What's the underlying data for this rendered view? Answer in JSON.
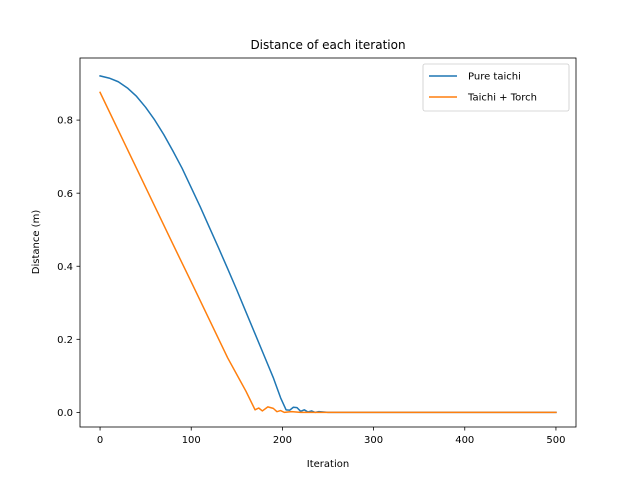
{
  "chart_data": {
    "type": "line",
    "title": "Distance of each iteration",
    "xlabel": "Iteration",
    "ylabel": "Distance (m)",
    "xlim": [
      -22,
      522
    ],
    "ylim": [
      -0.04,
      0.97
    ],
    "xticks": [
      0,
      100,
      200,
      300,
      400,
      500
    ],
    "yticks": [
      0.0,
      0.2,
      0.4,
      0.6,
      0.8
    ],
    "grid": false,
    "legend": "top-right",
    "series": [
      {
        "name": "Pure taichi",
        "color": "#1f77b4",
        "points": [
          [
            0,
            0.921
          ],
          [
            10,
            0.915
          ],
          [
            20,
            0.905
          ],
          [
            30,
            0.888
          ],
          [
            40,
            0.865
          ],
          [
            50,
            0.835
          ],
          [
            60,
            0.8
          ],
          [
            70,
            0.76
          ],
          [
            80,
            0.715
          ],
          [
            90,
            0.668
          ],
          [
            100,
            0.615
          ],
          [
            110,
            0.562
          ],
          [
            120,
            0.506
          ],
          [
            130,
            0.45
          ],
          [
            140,
            0.393
          ],
          [
            150,
            0.335
          ],
          [
            160,
            0.275
          ],
          [
            170,
            0.215
          ],
          [
            180,
            0.155
          ],
          [
            190,
            0.095
          ],
          [
            198,
            0.04
          ],
          [
            204,
            0.007
          ],
          [
            208,
            0.006
          ],
          [
            212,
            0.014
          ],
          [
            216,
            0.013
          ],
          [
            220,
            0.003
          ],
          [
            224,
            0.007
          ],
          [
            228,
            0.001
          ],
          [
            232,
            0.004
          ],
          [
            236,
            0.0
          ],
          [
            240,
            0.002
          ],
          [
            250,
            0.0
          ],
          [
            300,
            0.0
          ],
          [
            400,
            0.0
          ],
          [
            500,
            0.0
          ]
        ]
      },
      {
        "name": "Taichi + Torch",
        "color": "#ff7f0e",
        "points": [
          [
            0,
            0.876
          ],
          [
            20,
            0.772
          ],
          [
            40,
            0.668
          ],
          [
            60,
            0.564
          ],
          [
            80,
            0.46
          ],
          [
            100,
            0.357
          ],
          [
            120,
            0.253
          ],
          [
            140,
            0.149
          ],
          [
            160,
            0.058
          ],
          [
            170,
            0.007
          ],
          [
            174,
            0.012
          ],
          [
            178,
            0.004
          ],
          [
            184,
            0.015
          ],
          [
            190,
            0.011
          ],
          [
            194,
            0.002
          ],
          [
            198,
            0.005
          ],
          [
            202,
            0.0
          ],
          [
            210,
            0.002
          ],
          [
            220,
            0.0
          ],
          [
            300,
            0.0
          ],
          [
            400,
            0.0
          ],
          [
            500,
            0.0
          ]
        ]
      }
    ]
  }
}
